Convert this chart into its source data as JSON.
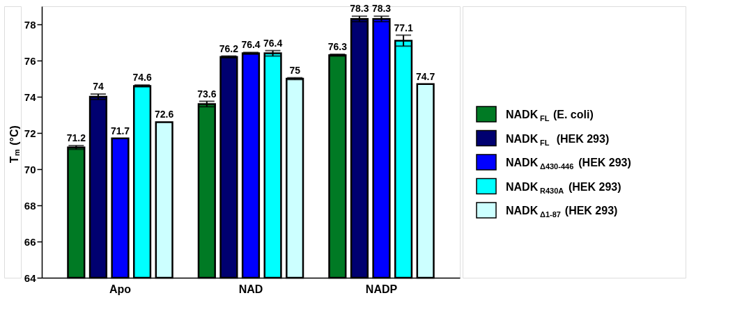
{
  "chart_data": {
    "type": "bar",
    "ylabel": "T$_{m}$ (°C)",
    "categories": [
      "Apo",
      "NAD",
      "NADP"
    ],
    "ylim": [
      64,
      79
    ],
    "yticks": [
      64,
      66,
      68,
      70,
      72,
      74,
      76,
      78
    ],
    "grid": false,
    "legend": "right",
    "data_labels": true,
    "series": [
      {
        "name": "NADK$_{FL}$ (E. coli)",
        "color": "#007a24",
        "values": [
          71.2,
          73.6,
          76.3
        ],
        "errors": [
          0.1,
          0.15,
          0.05
        ]
      },
      {
        "name": "NADK$_{FL}$  (HEK 293)",
        "color": "#000070",
        "values": [
          74,
          76.2,
          78.3
        ],
        "errors": [
          0.15,
          0.05,
          0.15
        ]
      },
      {
        "name": "NADK$_{Δ430-446}$ (HEK 293)",
        "color": "#0000ff",
        "values": [
          71.7,
          76.4,
          78.3
        ],
        "errors": [
          null,
          0.05,
          0.15
        ]
      },
      {
        "name": "NADK$_{R430A}$ (HEK 293)",
        "color": "#00ffff",
        "values": [
          74.6,
          76.4,
          77.1
        ],
        "errors": [
          0.05,
          0.15,
          0.3
        ]
      },
      {
        "name": "NADK$_{Δ1-87}$ (HEK 293)",
        "color": "#ccffff",
        "values": [
          72.6,
          75,
          74.7
        ],
        "errors": [
          null,
          0.05,
          null
        ]
      }
    ]
  }
}
